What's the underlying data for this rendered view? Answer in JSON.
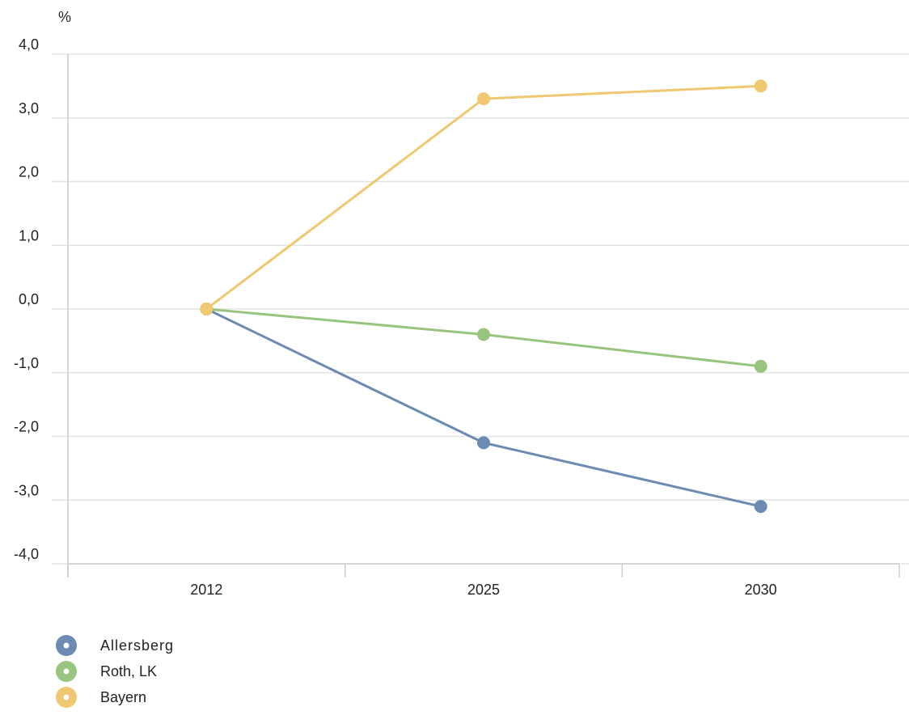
{
  "chart_data": {
    "type": "line",
    "ylabel": "%",
    "xlabel": "",
    "categories": [
      "2012",
      "2025",
      "2030"
    ],
    "ylim": [
      -4.0,
      4.0
    ],
    "yticks": [
      4.0,
      3.0,
      2.0,
      1.0,
      0.0,
      -1.0,
      -2.0,
      -3.0,
      -4.0
    ],
    "ytick_labels": [
      "4,0",
      "3,0",
      "2,0",
      "1,0",
      "0,0",
      "-1,0",
      "-2,0",
      "-3,0",
      "-4,0"
    ],
    "grid": true,
    "legend": "bottom-left",
    "series": [
      {
        "name": "Allersberg",
        "values": [
          0.0,
          -2.1,
          -3.1
        ],
        "color": "#6b8bb3"
      },
      {
        "name": "Roth, LK",
        "values": [
          0.0,
          -0.4,
          -0.9
        ],
        "color": "#97c47e"
      },
      {
        "name": "Bayern",
        "values": [
          0.0,
          3.3,
          3.5
        ],
        "color": "#f0c872"
      }
    ]
  }
}
